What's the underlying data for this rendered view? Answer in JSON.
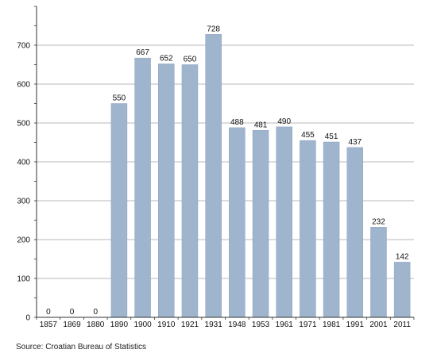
{
  "chart_data": {
    "type": "bar",
    "categories": [
      "1857",
      "1869",
      "1880",
      "1890",
      "1900",
      "1910",
      "1921",
      "1931",
      "1948",
      "1953",
      "1961",
      "1971",
      "1981",
      "1991",
      "2001",
      "2011"
    ],
    "values": [
      0,
      0,
      0,
      550,
      667,
      652,
      650,
      728,
      488,
      481,
      490,
      455,
      451,
      437,
      232,
      142
    ],
    "data_labels": [
      "0",
      "0",
      "0",
      "550",
      "667",
      "652",
      "650",
      "728",
      "488",
      "481",
      "490",
      "455",
      "451",
      "437",
      "232",
      "142"
    ],
    "y_ticks": [
      "0",
      "100",
      "200",
      "300",
      "400",
      "500",
      "600",
      "700"
    ],
    "ylim": [
      0,
      800
    ],
    "ytick_values": [
      0,
      100,
      200,
      300,
      400,
      500,
      600,
      700
    ],
    "grid": true,
    "bar_color": "#9fb4cd",
    "grid_color": "#a0a0a0"
  },
  "source": "Source: Croatian Bureau of Statistics"
}
